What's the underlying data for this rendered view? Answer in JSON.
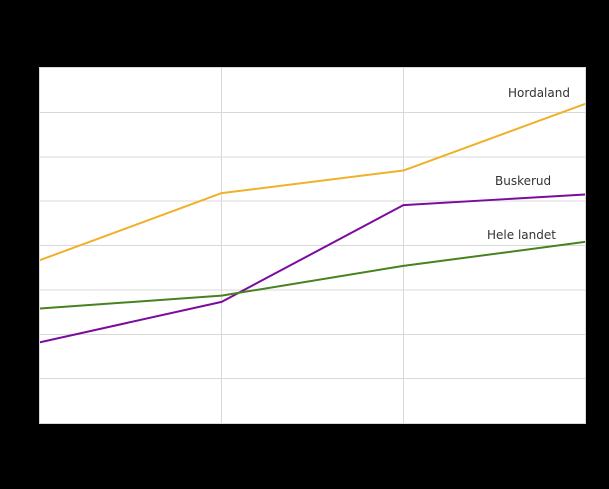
{
  "figure": {
    "title_visible": false,
    "axis_tick_labels_visible": false
  },
  "colors": {
    "background": "#000000",
    "plot_background": "#ffffff",
    "gridline": "#d8d8d8",
    "plot_border": "#d8d8d8",
    "label_text": "#333333"
  },
  "chart_data": {
    "type": "line",
    "title": "",
    "num_points": 4,
    "x_tick_labels": [],
    "y_tick_labels": [],
    "ylim": [
      0,
      8
    ],
    "y_unit": "gridline divisions (no numeric tick labels visible in image)",
    "grid": {
      "visible": true,
      "horizontal_divisions": 8,
      "vertical_divisions": 3
    },
    "legend": "inline labels near right end of each line",
    "series": [
      {
        "name": "Hordaland",
        "color": "#f0b028",
        "values": [
          3.67,
          5.18,
          5.69,
          7.19
        ]
      },
      {
        "name": "Buskerud",
        "color": "#7a0b9e",
        "values": [
          1.82,
          2.73,
          4.91,
          5.15
        ]
      },
      {
        "name": "Hele landet",
        "color": "#46821e",
        "values": [
          2.58,
          2.87,
          3.54,
          4.08
        ]
      }
    ]
  }
}
